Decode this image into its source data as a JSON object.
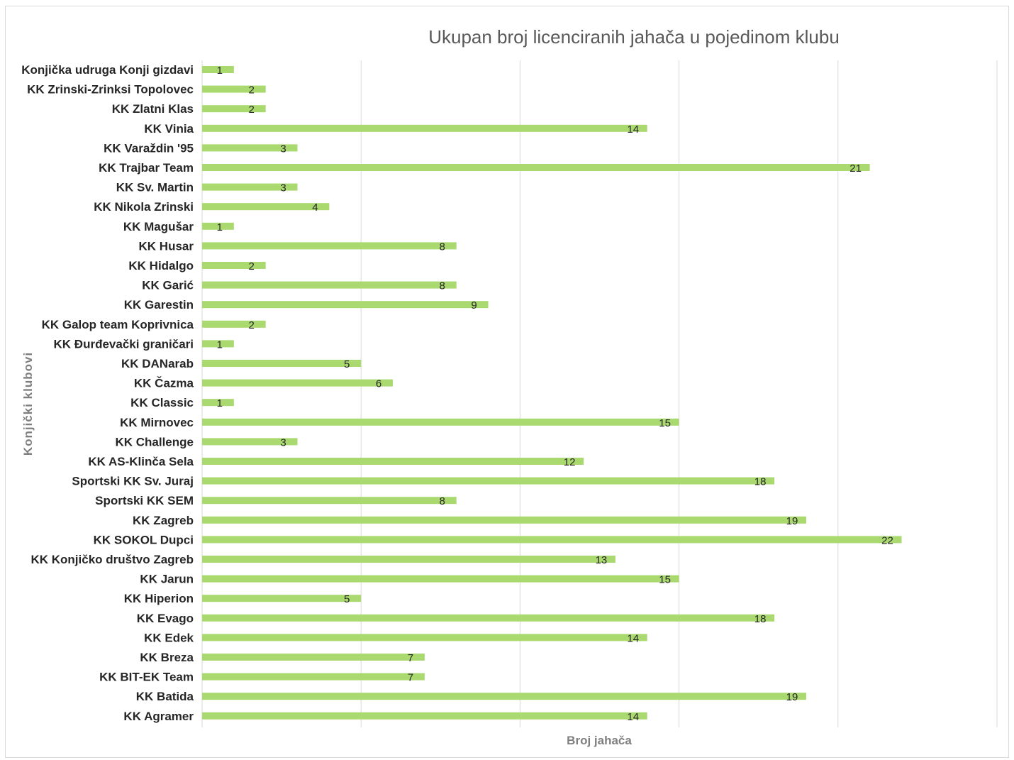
{
  "chart_data": {
    "type": "bar",
    "orientation": "horizontal",
    "title": "Ukupan broj licenciranih jahača u pojedinom klubu",
    "xlabel": "Broj jahača",
    "ylabel": "Konjički klubovi",
    "xlim": [
      0,
      25
    ],
    "grid": true,
    "legend": "none",
    "bar_color": "#a9d96f",
    "categories": [
      "Konjička udruga Konji gizdavi",
      "KK Zrinski-Zrinksi Topolovec",
      "KK Zlatni Klas",
      "KK Vinia",
      "KK Varaždin '95",
      "KK Trajbar Team",
      "KK Sv. Martin",
      "KK Nikola Zrinski",
      "KK Magušar",
      "KK Husar",
      "KK Hidalgo",
      "KK Garić",
      "KK Garestin",
      "KK Galop team Koprivnica",
      "KK Đurđevački graničari",
      "KK DANarab",
      "KK Čazma",
      "KK Classic",
      "KK Mirnovec",
      "KK Challenge",
      "KK AS-Klinča Sela",
      "Sportski KK Sv. Juraj",
      "Sportski KK SEM",
      "KK Zagreb",
      "KK SOKOL Dupci",
      "KK Konjičko društvo Zagreb",
      "KK Jarun",
      "KK Hiperion",
      "KK Evago",
      "KK Edek",
      "KK Breza",
      "KK BIT-EK Team",
      "KK Batida",
      "KK Agramer"
    ],
    "values": [
      1,
      2,
      2,
      14,
      3,
      21,
      3,
      4,
      1,
      8,
      2,
      8,
      9,
      2,
      1,
      5,
      6,
      1,
      15,
      3,
      12,
      18,
      8,
      19,
      22,
      13,
      15,
      5,
      18,
      14,
      7,
      7,
      19,
      14
    ]
  }
}
